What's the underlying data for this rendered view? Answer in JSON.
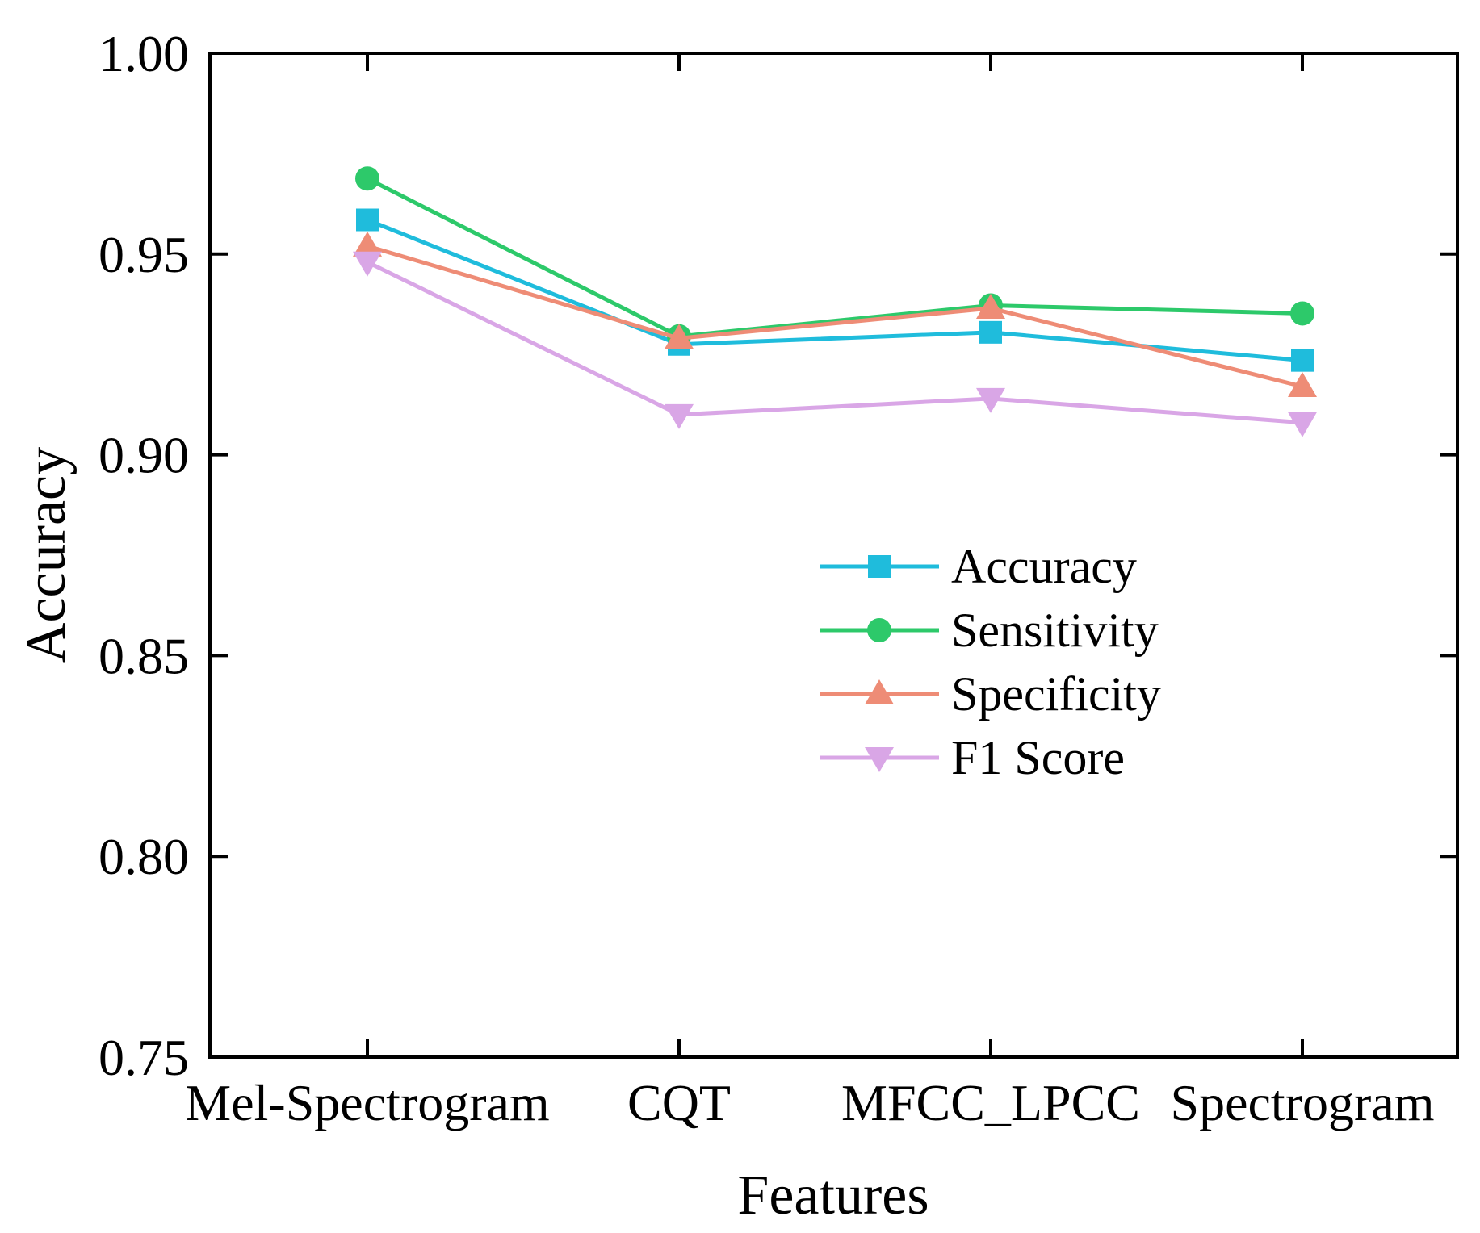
{
  "chart_data": {
    "type": "line",
    "title": "",
    "xlabel": "Features",
    "ylabel": "Accuracy",
    "categories": [
      "Mel-Spectrogram",
      "CQT",
      "MFCC_LPCC",
      "Spectrogram"
    ],
    "ylim": [
      0.75,
      1.0
    ],
    "yticks": [
      0.75,
      0.8,
      0.85,
      0.9,
      0.95,
      1.0
    ],
    "ytick_labels": [
      "0.75",
      "0.80",
      "0.85",
      "0.90",
      "0.95",
      "1.00"
    ],
    "grid": false,
    "legend_position": "center-right",
    "series": [
      {
        "name": "Accuracy",
        "color": "#1FBCDC",
        "marker": "square",
        "values": [
          0.9585,
          0.9275,
          0.9305,
          0.9235
        ]
      },
      {
        "name": "Sensitivity",
        "color": "#2DC96A",
        "marker": "circle",
        "values": [
          0.9688,
          0.9295,
          0.9372,
          0.9352
        ]
      },
      {
        "name": "Specificity",
        "color": "#EE8C76",
        "marker": "triangle-up",
        "values": [
          0.952,
          0.929,
          0.9365,
          0.917
        ]
      },
      {
        "name": "F1 Score",
        "color": "#D9A6E6",
        "marker": "triangle-down",
        "values": [
          0.948,
          0.91,
          0.914,
          0.908
        ]
      }
    ]
  }
}
